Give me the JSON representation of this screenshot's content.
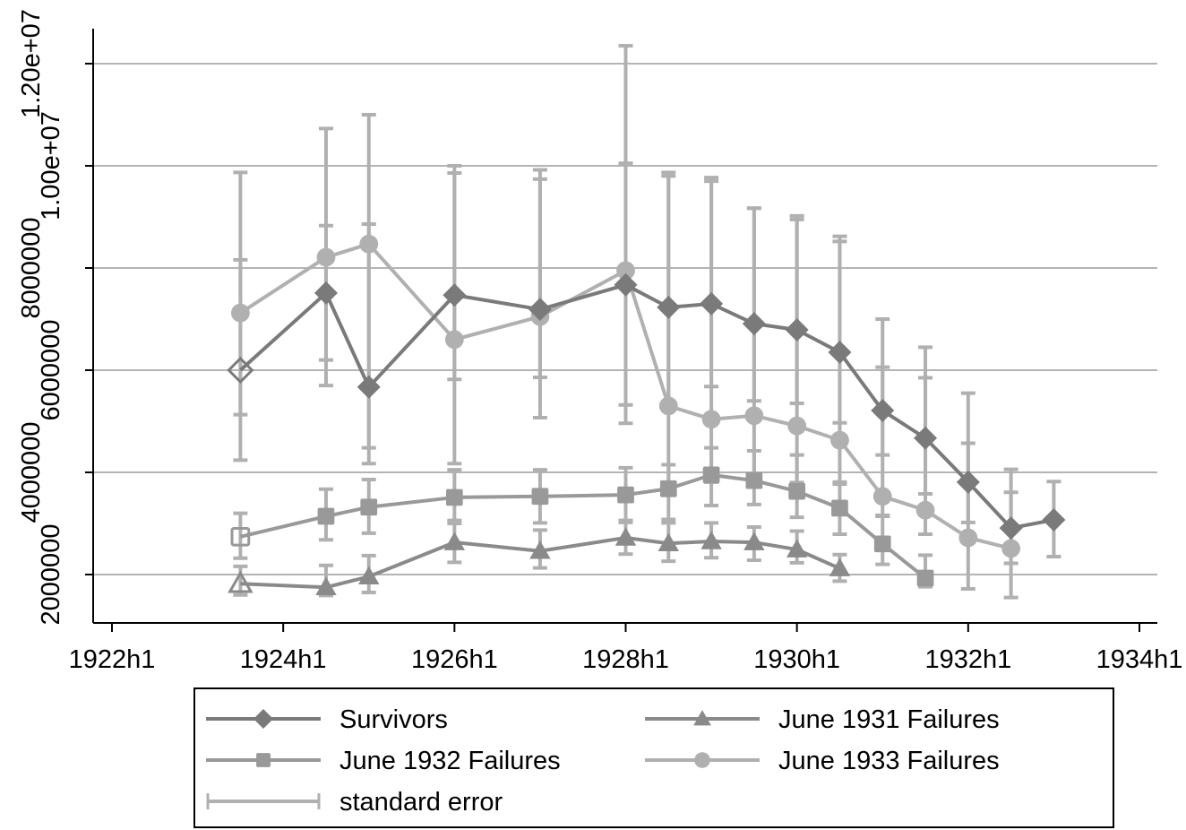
{
  "chart_data": {
    "type": "line",
    "title": "",
    "xlabel": "",
    "ylabel": "",
    "x_tick_labels": [
      "1922h1",
      "1924h1",
      "1926h1",
      "1928h1",
      "1930h1",
      "1932h1",
      "1934h1"
    ],
    "x_tick_values": [
      1922.0,
      1924.0,
      1926.0,
      1928.0,
      1930.0,
      1932.0,
      1934.0
    ],
    "y_tick_labels": [
      "2000000",
      "4000000",
      "6000000",
      "8000000",
      "1.00e+07",
      "1.20e+07"
    ],
    "y_tick_values": [
      2000000,
      4000000,
      6000000,
      8000000,
      10000000,
      12000000
    ],
    "xlim": [
      1922.0,
      1934.0
    ],
    "ylim": [
      1070000,
      12700000
    ],
    "grid": true,
    "legend_position": "bottom",
    "series": [
      {
        "name": "Survivors",
        "marker": "diamond",
        "color": "#7a7a7a",
        "first_marker_hollow": true,
        "x": [
          "1923h2",
          "1924h2",
          "1925h1",
          "1926h1",
          "1927h1",
          "1928h1",
          "1928h2",
          "1929h1",
          "1929h2",
          "1930h1",
          "1930h2",
          "1931h1",
          "1931h2",
          "1932h1",
          "1932h2",
          "1933h1"
        ],
        "values": [
          6000000,
          7510000,
          5670000,
          7470000,
          7190000,
          7670000,
          7230000,
          7300000,
          6910000,
          6790000,
          6350000,
          5210000,
          4670000,
          3810000,
          2910000,
          3070000
        ],
        "se_low": [
          5130000,
          6200000,
          4480000,
          5820000,
          5860000,
          5320000,
          5230000,
          5680000,
          5400000,
          5350000,
          4970000,
          4340000,
          3580000,
          3020000,
          2220000,
          2350000
        ],
        "se_high": [
          8160000,
          8830000,
          8860000,
          9860000,
          9740000,
          10050000,
          9800000,
          9700000,
          9170000,
          8950000,
          8620000,
          6060000,
          5850000,
          4570000,
          3610000,
          3820000
        ]
      },
      {
        "name": "June 1931 Failures",
        "marker": "triangle",
        "color": "#8a8a8a",
        "first_marker_hollow": true,
        "x": [
          "1923h2",
          "1924h2",
          "1925h1",
          "1926h1",
          "1927h1",
          "1928h1",
          "1928h2",
          "1929h1",
          "1929h2",
          "1930h1",
          "1930h2"
        ],
        "values": [
          1820000,
          1750000,
          1960000,
          2630000,
          2460000,
          2720000,
          2610000,
          2650000,
          2630000,
          2490000,
          2120000
        ],
        "se_low": [
          1600000,
          1590000,
          1650000,
          2240000,
          2130000,
          2400000,
          2260000,
          2330000,
          2280000,
          2230000,
          1870000
        ],
        "se_high": [
          2160000,
          2180000,
          2370000,
          3060000,
          2870000,
          3020000,
          3010000,
          3010000,
          2930000,
          2850000,
          2390000
        ]
      },
      {
        "name": "June 1932 Failures",
        "marker": "square",
        "color": "#999999",
        "first_marker_hollow": true,
        "x": [
          "1923h2",
          "1924h2",
          "1925h1",
          "1926h1",
          "1927h1",
          "1928h1",
          "1928h2",
          "1929h1",
          "1929h2",
          "1930h1",
          "1930h2",
          "1931h1",
          "1931h2"
        ],
        "values": [
          2740000,
          3140000,
          3320000,
          3510000,
          3530000,
          3560000,
          3680000,
          3950000,
          3840000,
          3630000,
          3300000,
          2600000,
          1930000
        ],
        "se_low": [
          2320000,
          2680000,
          2810000,
          3000000,
          3010000,
          3060000,
          3080000,
          3350000,
          3370000,
          3120000,
          2790000,
          2200000,
          1760000
        ],
        "se_high": [
          3200000,
          3670000,
          3860000,
          4050000,
          4050000,
          4090000,
          4150000,
          4480000,
          4420000,
          4340000,
          3770000,
          3160000,
          2380000
        ]
      },
      {
        "name": "June 1933 Failures",
        "marker": "circle",
        "color": "#b0b0b0",
        "first_marker_hollow": false,
        "x": [
          "1923h2",
          "1924h2",
          "1925h1",
          "1926h1",
          "1927h1",
          "1928h1",
          "1928h2",
          "1929h1",
          "1929h2",
          "1930h1",
          "1930h2",
          "1931h1",
          "1931h2",
          "1932h1",
          "1932h2"
        ],
        "values": [
          7120000,
          8210000,
          8470000,
          6600000,
          7050000,
          7950000,
          5300000,
          5040000,
          5110000,
          4910000,
          4630000,
          3530000,
          3260000,
          2720000,
          2510000
        ],
        "se_low": [
          4240000,
          5700000,
          4170000,
          4170000,
          5070000,
          4960000,
          3610000,
          3810000,
          3820000,
          3800000,
          3810000,
          3140000,
          2790000,
          1720000,
          1550000
        ],
        "se_high": [
          9870000,
          10730000,
          11000000,
          10000000,
          9920000,
          12350000,
          9870000,
          9770000,
          9170000,
          9020000,
          8520000,
          7000000,
          6450000,
          5550000,
          4060000
        ]
      }
    ],
    "legend": {
      "items": [
        {
          "label": "Survivors",
          "marker": "diamond",
          "color": "#7a7a7a"
        },
        {
          "label": "June 1931 Failures",
          "marker": "triangle",
          "color": "#8a8a8a"
        },
        {
          "label": "June 1932 Failures",
          "marker": "square",
          "color": "#999999"
        },
        {
          "label": "June 1933 Failures",
          "marker": "circle",
          "color": "#b0b0b0"
        },
        {
          "label": "standard error",
          "marker": "errorbar",
          "color": "#b0b0b0"
        }
      ]
    }
  },
  "colors": {
    "grid": "#b4b4b4",
    "axis": "#000000",
    "errorbar": "#b0b0b0",
    "background": "#ffffff"
  }
}
